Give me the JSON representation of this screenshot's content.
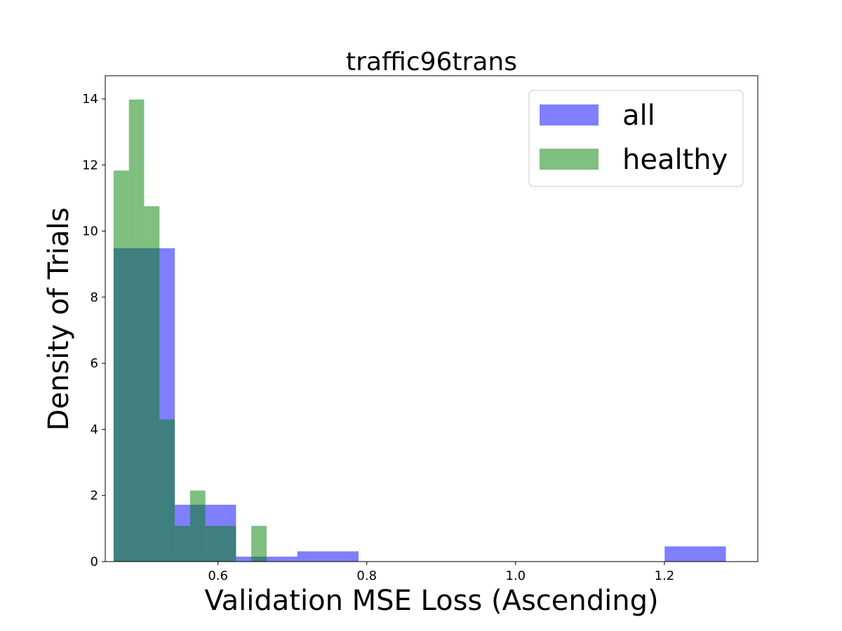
{
  "chart_data": {
    "type": "histogram",
    "title": "traffic96trans",
    "xlabel": "Validation MSE Loss (Ascending)",
    "ylabel": "Density of Trials",
    "xlim": [
      0.4485,
      1.3255
    ],
    "ylim": [
      0,
      14.7
    ],
    "xticks": [
      0.6,
      0.8,
      1.0,
      1.2
    ],
    "xtick_labels": [
      "0.6",
      "0.8",
      "1.0",
      "1.2"
    ],
    "yticks": [
      0,
      2,
      4,
      6,
      8,
      10,
      12,
      14
    ],
    "ytick_labels": [
      "0",
      "2",
      "4",
      "6",
      "8",
      "10",
      "12",
      "14"
    ],
    "legend_position": "top-right",
    "series": [
      {
        "name": "all",
        "color": "#0000ff",
        "opacity": 0.5,
        "bins": [
          {
            "x0": 0.4597,
            "x1": 0.5008,
            "y": 9.48
          },
          {
            "x0": 0.5008,
            "x1": 0.542,
            "y": 9.48
          },
          {
            "x0": 0.542,
            "x1": 0.5831,
            "y": 1.72
          },
          {
            "x0": 0.5831,
            "x1": 0.6243,
            "y": 1.72
          },
          {
            "x0": 0.6243,
            "x1": 0.6654,
            "y": 0.15
          },
          {
            "x0": 0.6654,
            "x1": 0.7066,
            "y": 0.15
          },
          {
            "x0": 0.7066,
            "x1": 0.7477,
            "y": 0.31
          },
          {
            "x0": 0.7477,
            "x1": 0.7889,
            "y": 0.31
          },
          {
            "x0": 1.2003,
            "x1": 1.2826,
            "y": 0.46
          }
        ]
      },
      {
        "name": "healthy",
        "color": "#008000",
        "opacity": 0.5,
        "bins": [
          {
            "x0": 0.4597,
            "x1": 0.4803,
            "y": 11.83
          },
          {
            "x0": 0.4803,
            "x1": 0.5008,
            "y": 13.98
          },
          {
            "x0": 0.5008,
            "x1": 0.5214,
            "y": 10.75
          },
          {
            "x0": 0.5214,
            "x1": 0.542,
            "y": 4.3
          },
          {
            "x0": 0.542,
            "x1": 0.5625,
            "y": 1.08
          },
          {
            "x0": 0.5625,
            "x1": 0.5831,
            "y": 2.15
          },
          {
            "x0": 0.5831,
            "x1": 0.6037,
            "y": 1.08
          },
          {
            "x0": 0.6037,
            "x1": 0.6243,
            "y": 1.08
          },
          {
            "x0": 0.6448,
            "x1": 0.6654,
            "y": 1.08
          }
        ]
      }
    ]
  }
}
